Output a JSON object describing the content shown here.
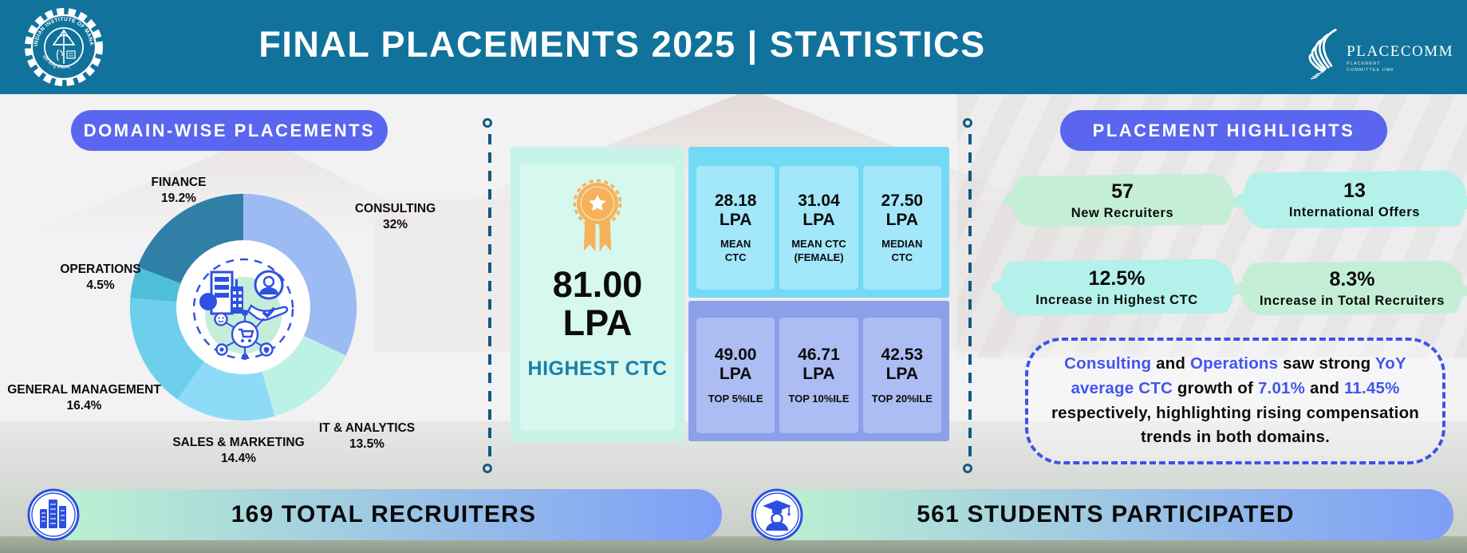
{
  "header": {
    "title": "FINAL PLACEMENTS 2025 | STATISTICS",
    "iimk_emblem": {
      "arc_text": "INDIAN INSTITUTE OF MANAGEMENT KOZHIKODE",
      "motto": "योगः कर्मसु कौशलम्"
    },
    "placecomm": {
      "name": "PLACECOMM",
      "sub_line1": "PLACEMENT",
      "sub_line2": "COMMITTEE",
      "sub_line3": "IIMK"
    }
  },
  "left_panel": {
    "pill_label": "DOMAIN-WISE PLACEMENTS"
  },
  "chart_data": {
    "type": "pie",
    "title": "Domain-wise Placements",
    "donut": true,
    "start_angle_deg": 0,
    "clockwise": true,
    "unit": "%",
    "slices": [
      {
        "label": "CONSULTING",
        "value": 32,
        "pct_label": "32%",
        "color": "#9CBBF3"
      },
      {
        "label": "IT & ANALYTICS",
        "value": 13.5,
        "pct_label": "13.5%",
        "color": "#BCF1E5"
      },
      {
        "label": "SALES & MARKETING",
        "value": 14.4,
        "pct_label": "14.4%",
        "color": "#8EDBF7"
      },
      {
        "label": "GENERAL MANAGEMENT",
        "value": 16.4,
        "pct_label": "16.4%",
        "color": "#6ECFEC"
      },
      {
        "label": "OPERATIONS",
        "value": 4.5,
        "pct_label": "4.5%",
        "color": "#4EBED9"
      },
      {
        "label": "FINANCE",
        "value": 19.2,
        "pct_label": "19.2%",
        "color": "#2F7FA7"
      }
    ]
  },
  "ctc": {
    "highest": {
      "value": "81.00",
      "unit": "LPA",
      "label": "HIGHEST CTC"
    },
    "top_cells": [
      {
        "value": "28.18\nLPA",
        "label": "MEAN\nCTC"
      },
      {
        "value": "31.04\nLPA",
        "label": "MEAN CTC\n(FEMALE)"
      },
      {
        "value": "27.50\nLPA",
        "label": "MEDIAN\nCTC"
      }
    ],
    "bottom_cells": [
      {
        "value": "49.00\nLPA",
        "label": "TOP 5%ILE"
      },
      {
        "value": "46.71\nLPA",
        "label": "TOP 10%ILE"
      },
      {
        "value": "42.53\nLPA",
        "label": "TOP 20%ILE"
      }
    ]
  },
  "highlights": {
    "pill_label": "PLACEMENT HIGHLIGHTS",
    "stats": [
      {
        "value": "57",
        "label": "New Recruiters"
      },
      {
        "value": "13",
        "label": "International Offers"
      },
      {
        "value": "12.5%",
        "label": "Increase in Highest CTC"
      },
      {
        "value": "8.3%",
        "label": "Increase in Total Recruiters"
      }
    ],
    "note_segments": [
      {
        "text": "Consulting",
        "accent": true
      },
      {
        "text": " and ",
        "accent": false
      },
      {
        "text": "Operations",
        "accent": true
      },
      {
        "text": " saw strong ",
        "accent": false
      },
      {
        "text": "YoY average CTC",
        "accent": true
      },
      {
        "text": " growth of ",
        "accent": false
      },
      {
        "text": "7.01%",
        "accent": true
      },
      {
        "text": " and ",
        "accent": false
      },
      {
        "text": "11.45%",
        "accent": true
      },
      {
        "text": " respectively, highlighting rising compensation trends in both domains.",
        "accent": false
      }
    ]
  },
  "footer": {
    "recruiters_label": "169 TOTAL RECRUITERS",
    "students_label": "561 STUDENTS PARTICIPATED"
  },
  "colors": {
    "header": "#11739B",
    "pill": "#5A66EF",
    "dashed": "#14597E",
    "mint_box": "#C7F3E8",
    "mint_inner": "#D6F8EF",
    "highest_label": "#1B7FA8",
    "top_box": "#72DAF5",
    "top_cell": "#A3E7FB",
    "bottom_box": "#8C9FE9",
    "bottom_cell": "#ACBDF3",
    "brush_mint": "#C5EED7",
    "brush_cyan": "#B4F1EA",
    "note_border": "#3E52E9",
    "accent_text": "#4355F2",
    "medal": "#F5B25A",
    "icon_blue": "#2B50E0",
    "footer_g1": "#BDF3D0",
    "footer_g2": "#7E9DF7"
  }
}
